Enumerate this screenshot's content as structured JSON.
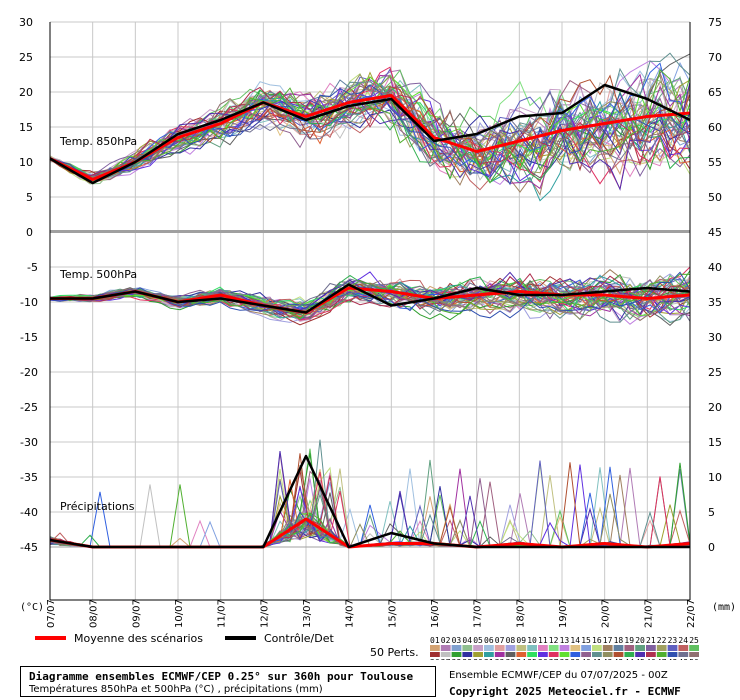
{
  "chart_data": [
    {
      "type": "line",
      "panel": "temp850",
      "title": "Temp. 850hPa",
      "ylabel_left": "(°C)",
      "ylim": [
        0,
        30
      ],
      "yticks_left": [
        30,
        25,
        20,
        15,
        10,
        5,
        0
      ],
      "yticks_right": [
        75,
        70,
        65,
        60,
        55,
        50,
        45
      ],
      "x": [
        "07/07",
        "08/07",
        "09/07",
        "10/07",
        "11/07",
        "12/07",
        "13/07",
        "14/07",
        "15/07",
        "16/07",
        "17/07",
        "18/07",
        "19/07",
        "20/07",
        "21/07",
        "22/07"
      ],
      "series": [
        {
          "name": "Moyenne des scénarios",
          "color": "#ff0000",
          "values": [
            10.5,
            7.5,
            10.0,
            13.5,
            15.5,
            18.5,
            16.5,
            18.5,
            19.5,
            13.5,
            11.5,
            13.0,
            14.5,
            15.5,
            16.5,
            17.0
          ]
        },
        {
          "name": "Contrôle/Det",
          "color": "#000000",
          "values": [
            10.5,
            7.0,
            10.0,
            14.0,
            16.0,
            18.5,
            16.0,
            18.0,
            19.0,
            13.0,
            14.0,
            16.5,
            17.0,
            21.0,
            19.0,
            16.0
          ]
        }
      ]
    },
    {
      "type": "line",
      "panel": "temp500",
      "title": "Temp. 500hPa",
      "ylim": [
        -15,
        -5
      ],
      "yticks_left": [
        -5,
        -10,
        -15
      ],
      "yticks_right": [
        40,
        35,
        30
      ],
      "x": [
        "07/07",
        "08/07",
        "09/07",
        "10/07",
        "11/07",
        "12/07",
        "13/07",
        "14/07",
        "15/07",
        "16/07",
        "17/07",
        "18/07",
        "19/07",
        "20/07",
        "21/07",
        "22/07"
      ],
      "series": [
        {
          "name": "Moyenne des scénarios",
          "color": "#ff0000",
          "values": [
            -9.5,
            -9.5,
            -8.5,
            -10.0,
            -9.0,
            -10.5,
            -11.5,
            -8.0,
            -8.5,
            -9.5,
            -9.0,
            -8.5,
            -9.0,
            -9.0,
            -9.5,
            -9.0
          ]
        },
        {
          "name": "Contrôle/Det",
          "color": "#000000",
          "values": [
            -9.5,
            -9.5,
            -8.5,
            -10.0,
            -9.5,
            -10.5,
            -11.5,
            -7.5,
            -10.5,
            -9.5,
            -8.0,
            -9.0,
            -9.0,
            -8.5,
            -8.0,
            -8.5
          ]
        }
      ]
    },
    {
      "type": "line",
      "panel": "precip",
      "title": "Précipitations",
      "ylabel_right": "(mm)",
      "ylim": [
        0,
        25
      ],
      "yticks_left": [
        -20,
        -25,
        -30,
        -35,
        -40,
        -45
      ],
      "yticks_right": [
        25,
        20,
        15,
        10,
        5,
        0
      ],
      "x": [
        "07/07",
        "08/07",
        "09/07",
        "10/07",
        "11/07",
        "12/07",
        "13/07",
        "14/07",
        "15/07",
        "16/07",
        "17/07",
        "18/07",
        "19/07",
        "20/07",
        "21/07",
        "22/07"
      ],
      "series": [
        {
          "name": "Moyenne des scénarios",
          "color": "#ff0000",
          "values": [
            1.0,
            0.0,
            0.0,
            0.0,
            0.0,
            0.0,
            4.0,
            0.0,
            0.5,
            0.5,
            0.0,
            0.5,
            0.0,
            0.5,
            0.0,
            0.5
          ]
        },
        {
          "name": "Contrôle/Det",
          "color": "#000000",
          "values": [
            1.0,
            0.0,
            0.0,
            0.0,
            0.0,
            0.0,
            13.0,
            0.0,
            2.0,
            0.5,
            0.0,
            0.0,
            0.0,
            0.0,
            0.0,
            0.0
          ]
        }
      ]
    }
  ],
  "legend": {
    "mean_label": "Moyenne des scénarios",
    "mean_color": "#ff0000",
    "control_label": "Contrôle/Det",
    "control_color": "#000000",
    "perts_label": "50 Perts.",
    "perts_numbers_row1": [
      "01",
      "02",
      "03",
      "04",
      "05",
      "06",
      "07",
      "08",
      "09",
      "10",
      "11",
      "12",
      "13",
      "14",
      "15",
      "16",
      "17",
      "18",
      "19",
      "20",
      "21",
      "22",
      "23",
      "24",
      "25"
    ],
    "perts_numbers_row2": [
      "26",
      "27",
      "28",
      "29",
      "30",
      "31",
      "32",
      "33",
      "34",
      "35",
      "36",
      "37",
      "38",
      "39",
      "40",
      "41",
      "42",
      "43",
      "44",
      "45",
      "46",
      "47",
      "48",
      "49",
      "50"
    ],
    "perts_colors": [
      "#d4a373",
      "#b07bb5",
      "#7fa0d0",
      "#8fbf8f",
      "#c8a0c8",
      "#a0c0e0",
      "#e0a0a0",
      "#a0a0e0",
      "#c0c080",
      "#80c0c0",
      "#e080c0",
      "#80e080",
      "#c080e0",
      "#e0c080",
      "#80a0e0",
      "#c0e080",
      "#a08060",
      "#6080a0",
      "#a06080",
      "#60a080",
      "#8060a0",
      "#a0a060",
      "#6060c0",
      "#c06060",
      "#60c060",
      "#a03030",
      "#c0c0c0",
      "#30a030",
      "#3030a0",
      "#a0a030",
      "#30a0a0",
      "#a030a0",
      "#606060",
      "#e06030",
      "#30e060",
      "#6030e0",
      "#e03060",
      "#60e030",
      "#3060e0",
      "#906090",
      "#609090",
      "#909060",
      "#b05030",
      "#30b050",
      "#5030b0",
      "#b03050",
      "#50b030",
      "#3050b0",
      "#707090",
      "#907070"
    ]
  },
  "footer": {
    "line1": "Diagramme ensembles ECMWF/CEP 0.25° sur 360h pour Toulouse",
    "line2": "Températures 850hPa et 500hPa (°C) , précipitations (mm)",
    "run": "Ensemble ECMWF/CEP du 07/07/2025 - 00Z",
    "copyright": "Copyright 2025 Meteociel.fr - ECMWF"
  }
}
